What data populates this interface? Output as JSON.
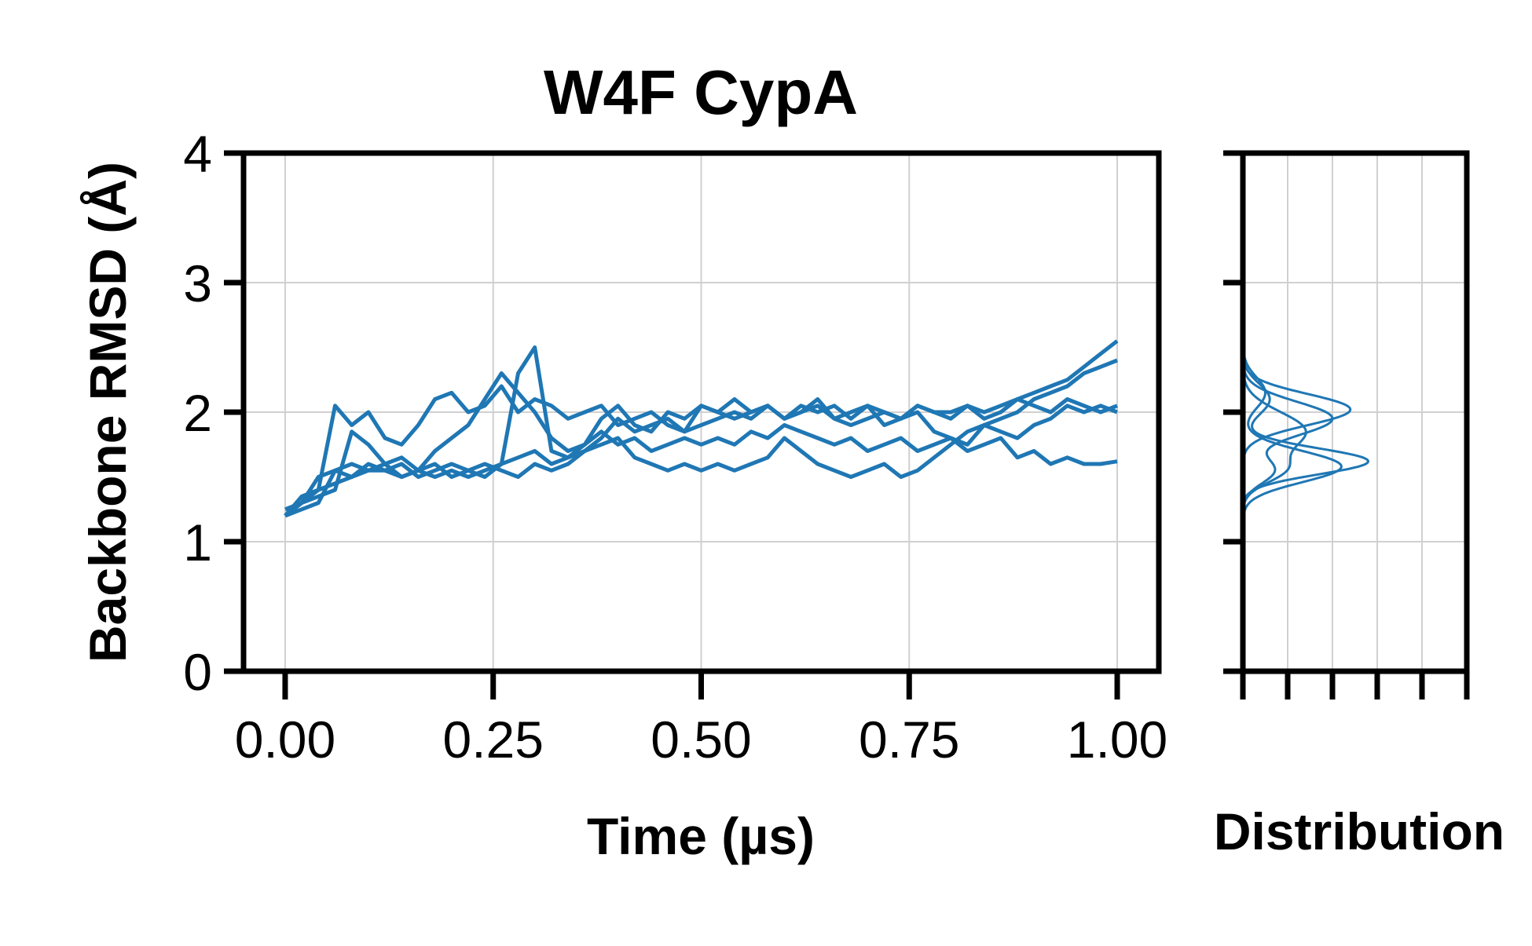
{
  "chart_data": [
    {
      "type": "line",
      "title": "W4F CypA",
      "xlabel": "Time (µs)",
      "ylabel": "Backbone RMSD (Å)",
      "xlim": [
        -0.05,
        1.05
      ],
      "ylim": [
        0,
        4
      ],
      "xticks": [
        0.0,
        0.25,
        0.5,
        0.75,
        1.0
      ],
      "xtick_labels": [
        "0.00",
        "0.25",
        "0.50",
        "0.75",
        "1.00"
      ],
      "yticks": [
        0,
        1,
        2,
        3,
        4
      ],
      "ytick_labels": [
        "0",
        "1",
        "2",
        "3",
        "4"
      ],
      "grid": true,
      "color": "#1f77b4",
      "series": [
        {
          "x": [
            0.0,
            0.02,
            0.04,
            0.06,
            0.08,
            0.1,
            0.12,
            0.14,
            0.16,
            0.18,
            0.2,
            0.22,
            0.24,
            0.26,
            0.28,
            0.3,
            0.32,
            0.34,
            0.36,
            0.38,
            0.4,
            0.42,
            0.44,
            0.46,
            0.48,
            0.5,
            0.52,
            0.54,
            0.56,
            0.58,
            0.6,
            0.62,
            0.64,
            0.66,
            0.68,
            0.7,
            0.72,
            0.74,
            0.76,
            0.78,
            0.8,
            0.82,
            0.84,
            0.86,
            0.88,
            0.9,
            0.92,
            0.94,
            0.96,
            0.98,
            1.0
          ],
          "y": [
            1.2,
            1.35,
            1.4,
            2.05,
            1.9,
            2.0,
            1.8,
            1.75,
            1.9,
            2.1,
            2.15,
            2.0,
            2.05,
            2.2,
            2.0,
            2.1,
            2.05,
            1.95,
            2.0,
            2.05,
            1.9,
            1.95,
            2.0,
            1.9,
            1.85,
            2.05,
            2.0,
            1.95,
            2.0,
            2.05,
            1.95,
            2.0,
            2.1,
            1.95,
            2.0,
            2.05,
            2.0,
            1.95,
            2.05,
            2.0,
            2.0,
            2.05,
            1.95,
            2.0,
            2.1,
            2.05,
            2.0,
            2.1,
            2.05,
            2.0,
            2.05
          ]
        },
        {
          "x": [
            0.0,
            0.02,
            0.04,
            0.06,
            0.08,
            0.1,
            0.12,
            0.14,
            0.16,
            0.18,
            0.2,
            0.22,
            0.24,
            0.26,
            0.28,
            0.3,
            0.32,
            0.34,
            0.36,
            0.38,
            0.4,
            0.42,
            0.44,
            0.46,
            0.48,
            0.5,
            0.52,
            0.54,
            0.56,
            0.58,
            0.6,
            0.62,
            0.64,
            0.66,
            0.68,
            0.7,
            0.72,
            0.74,
            0.76,
            0.78,
            0.8,
            0.82,
            0.84,
            0.86,
            0.88,
            0.9,
            0.92,
            0.94,
            0.96,
            0.98,
            1.0
          ],
          "y": [
            1.25,
            1.3,
            1.5,
            1.55,
            1.6,
            1.55,
            1.6,
            1.65,
            1.55,
            1.7,
            1.8,
            1.9,
            2.1,
            2.3,
            2.15,
            2.0,
            1.8,
            1.7,
            1.75,
            1.85,
            1.75,
            1.8,
            1.7,
            1.75,
            1.8,
            1.75,
            1.8,
            1.75,
            1.85,
            1.8,
            1.9,
            1.85,
            1.8,
            1.75,
            1.8,
            1.7,
            1.75,
            1.8,
            1.7,
            1.75,
            1.8,
            1.7,
            1.75,
            1.8,
            1.65,
            1.7,
            1.6,
            1.65,
            1.6,
            1.6,
            1.62
          ]
        },
        {
          "x": [
            0.0,
            0.02,
            0.04,
            0.06,
            0.08,
            0.1,
            0.12,
            0.14,
            0.16,
            0.18,
            0.2,
            0.22,
            0.24,
            0.26,
            0.28,
            0.3,
            0.32,
            0.34,
            0.36,
            0.38,
            0.4,
            0.42,
            0.44,
            0.46,
            0.48,
            0.5,
            0.52,
            0.54,
            0.56,
            0.58,
            0.6,
            0.62,
            0.64,
            0.66,
            0.68,
            0.7,
            0.72,
            0.74,
            0.76,
            0.78,
            0.8,
            0.82,
            0.84,
            0.86,
            0.88,
            0.9,
            0.92,
            0.94,
            0.96,
            0.98,
            1.0
          ],
          "y": [
            1.2,
            1.3,
            1.4,
            1.45,
            1.5,
            1.55,
            1.55,
            1.6,
            1.5,
            1.55,
            1.6,
            1.55,
            1.5,
            1.6,
            1.65,
            1.7,
            1.6,
            1.65,
            1.7,
            1.75,
            1.8,
            1.65,
            1.6,
            1.55,
            1.6,
            1.55,
            1.6,
            1.55,
            1.6,
            1.65,
            1.8,
            1.7,
            1.6,
            1.55,
            1.5,
            1.55,
            1.6,
            1.5,
            1.55,
            1.65,
            1.75,
            1.85,
            1.9,
            1.95,
            2.0,
            2.1,
            2.15,
            2.2,
            2.3,
            2.35,
            2.4
          ]
        },
        {
          "x": [
            0.0,
            0.02,
            0.04,
            0.06,
            0.08,
            0.1,
            0.12,
            0.14,
            0.16,
            0.18,
            0.2,
            0.22,
            0.24,
            0.26,
            0.28,
            0.3,
            0.32,
            0.34,
            0.36,
            0.38,
            0.4,
            0.42,
            0.44,
            0.46,
            0.48,
            0.5,
            0.52,
            0.54,
            0.56,
            0.58,
            0.6,
            0.62,
            0.64,
            0.66,
            0.68,
            0.7,
            0.72,
            0.74,
            0.76,
            0.78,
            0.8,
            0.82,
            0.84,
            0.86,
            0.88,
            0.9,
            0.92,
            0.94,
            0.96,
            0.98,
            1.0
          ],
          "y": [
            1.2,
            1.3,
            1.35,
            1.4,
            1.85,
            1.75,
            1.6,
            1.5,
            1.55,
            1.5,
            1.55,
            1.5,
            1.55,
            1.6,
            2.3,
            2.5,
            1.7,
            1.65,
            1.75,
            1.95,
            2.05,
            1.9,
            1.85,
            2.0,
            1.95,
            2.05,
            2.0,
            2.1,
            2.0,
            2.05,
            1.95,
            2.05,
            2.0,
            2.05,
            1.95,
            2.05,
            1.9,
            1.95,
            2.0,
            1.85,
            1.8,
            1.75,
            1.9,
            1.85,
            1.8,
            1.9,
            1.95,
            2.05,
            2.0,
            2.05,
            2.0
          ]
        },
        {
          "x": [
            0.0,
            0.02,
            0.04,
            0.06,
            0.08,
            0.1,
            0.12,
            0.14,
            0.16,
            0.18,
            0.2,
            0.22,
            0.24,
            0.26,
            0.28,
            0.3,
            0.32,
            0.34,
            0.36,
            0.38,
            0.4,
            0.42,
            0.44,
            0.46,
            0.48,
            0.5,
            0.52,
            0.54,
            0.56,
            0.58,
            0.6,
            0.62,
            0.64,
            0.66,
            0.68,
            0.7,
            0.72,
            0.74,
            0.76,
            0.78,
            0.8,
            0.82,
            0.84,
            0.86,
            0.88,
            0.9,
            0.92,
            0.94,
            0.96,
            0.98,
            1.0
          ],
          "y": [
            1.2,
            1.25,
            1.3,
            1.55,
            1.5,
            1.6,
            1.55,
            1.5,
            1.55,
            1.6,
            1.5,
            1.55,
            1.6,
            1.55,
            1.5,
            1.6,
            1.55,
            1.6,
            1.7,
            1.8,
            1.95,
            1.85,
            1.9,
            1.95,
            1.85,
            1.9,
            1.95,
            2.0,
            1.95,
            2.05,
            1.95,
            2.0,
            2.05,
            1.95,
            1.9,
            1.95,
            2.0,
            1.95,
            2.05,
            2.0,
            1.95,
            2.05,
            2.0,
            2.05,
            2.1,
            2.15,
            2.2,
            2.25,
            2.35,
            2.45,
            2.55
          ]
        }
      ]
    },
    {
      "type": "line",
      "xlabel": "Distribution",
      "ylim": [
        0,
        4
      ],
      "xlim": [
        0,
        5
      ],
      "xticks": [
        0,
        1,
        2,
        3,
        4,
        5
      ],
      "yticks": [
        0,
        1,
        2,
        3,
        4
      ],
      "grid": true,
      "color": "#1f77b4",
      "series": [
        {
          "peaks": [
            {
              "center": 2.02,
              "width": 0.12,
              "height": 2.4
            }
          ]
        },
        {
          "peaks": [
            {
              "center": 1.62,
              "width": 0.1,
              "height": 2.8
            },
            {
              "center": 2.1,
              "width": 0.12,
              "height": 0.6
            }
          ]
        },
        {
          "peaks": [
            {
              "center": 1.58,
              "width": 0.12,
              "height": 2.2
            },
            {
              "center": 2.15,
              "width": 0.12,
              "height": 0.5
            }
          ]
        },
        {
          "peaks": [
            {
              "center": 1.95,
              "width": 0.13,
              "height": 2.0
            },
            {
              "center": 1.55,
              "width": 0.1,
              "height": 0.7
            }
          ]
        },
        {
          "peaks": [
            {
              "center": 1.85,
              "width": 0.15,
              "height": 1.4
            },
            {
              "center": 1.55,
              "width": 0.1,
              "height": 0.8
            }
          ]
        }
      ]
    }
  ]
}
